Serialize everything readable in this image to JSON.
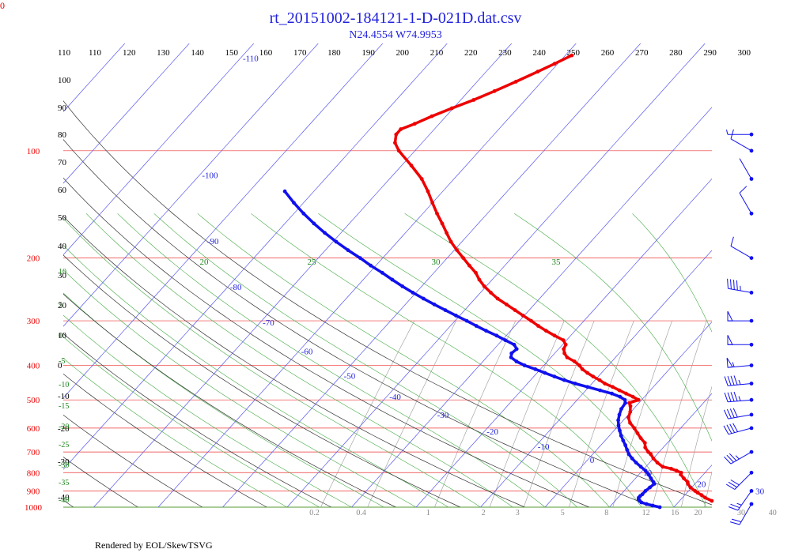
{
  "chart_data": {
    "type": "scatter",
    "title": "rt_20151002-184121-1-D-021D.dat.csv",
    "subtitle": "N24.4554 W74.9953",
    "footer": "Rendered by EOL/SkewTSVG",
    "corner_label": "0",
    "pressure_labels": [
      "100",
      "200",
      "300",
      "400",
      "500",
      "600",
      "700",
      "800",
      "900",
      "1000"
    ],
    "pressure_levels": [
      100,
      200,
      300,
      400,
      500,
      600,
      700,
      800,
      900,
      1000
    ],
    "theta_labels": [
      "110",
      "120",
      "130",
      "140",
      "150",
      "160",
      "170",
      "180",
      "190",
      "200",
      "210",
      "220",
      "230",
      "240",
      "250",
      "260",
      "270",
      "280",
      "290",
      "300"
    ],
    "theta_values": [
      110,
      120,
      130,
      140,
      150,
      160,
      170,
      180,
      190,
      200,
      210,
      220,
      230,
      240,
      250,
      260,
      270,
      280,
      290,
      300
    ],
    "left_theta_labels": [
      "110",
      "100",
      "90",
      "80",
      "70",
      "60",
      "50",
      "40",
      "30",
      "20",
      "10",
      "0",
      "-10",
      "-20",
      "-30",
      "-40"
    ],
    "isotherm_labels": [
      {
        "text": "-110",
        "t": -110
      },
      {
        "text": "-100",
        "t": -100
      },
      {
        "text": "-90",
        "t": -90
      },
      {
        "text": "-80",
        "t": -80
      },
      {
        "text": "-70",
        "t": -70
      },
      {
        "text": "-60",
        "t": -60
      },
      {
        "text": "-50",
        "t": -50
      },
      {
        "text": "-40",
        "t": -40
      },
      {
        "text": "-30",
        "t": -30
      },
      {
        "text": "-20",
        "t": -20
      },
      {
        "text": "-10",
        "t": -10
      },
      {
        "text": "0",
        "t": 0
      },
      {
        "text": "10",
        "t": 10
      },
      {
        "text": "20",
        "t": 20
      },
      {
        "text": "30",
        "t": 30
      }
    ],
    "moist_adiabat_top_labels": [
      "20",
      "25",
      "30",
      "35"
    ],
    "moist_adiabat_left_labels": [
      "10",
      "5",
      "0",
      "-5",
      "-10",
      "-15",
      "-20",
      "-25",
      "-30",
      "-35",
      "-40"
    ],
    "mixing_ratio_labels": [
      "0.2",
      "0.4",
      "1",
      "2",
      "3",
      "5",
      "8",
      "12",
      "16",
      "20",
      "30",
      "40"
    ],
    "temperature_series": {
      "name": "",
      "color": "#ee0000",
      "points": [
        [
          1000,
          28.2
        ],
        [
          980,
          26.5
        ],
        [
          960,
          25.0
        ],
        [
          940,
          23.5
        ],
        [
          925,
          22.6
        ],
        [
          910,
          21.6
        ],
        [
          900,
          21.0
        ],
        [
          880,
          19.8
        ],
        [
          860,
          18.9
        ],
        [
          850,
          18.6
        ],
        [
          830,
          17.5
        ],
        [
          810,
          16.5
        ],
        [
          800,
          16.3
        ],
        [
          790,
          15.3
        ],
        [
          780,
          14.2
        ],
        [
          770,
          12.6
        ],
        [
          750,
          11.2
        ],
        [
          730,
          10.0
        ],
        [
          710,
          9.0
        ],
        [
          700,
          8.3
        ],
        [
          680,
          7.2
        ],
        [
          660,
          6.5
        ],
        [
          640,
          5.2
        ],
        [
          620,
          4.0
        ],
        [
          600,
          2.8
        ],
        [
          580,
          1.4
        ],
        [
          560,
          0.4
        ],
        [
          540,
          -0.1
        ],
        [
          520,
          -0.9
        ],
        [
          510,
          -1.5
        ],
        [
          500,
          -0.5
        ],
        [
          490,
          -1.8
        ],
        [
          480,
          -3.3
        ],
        [
          470,
          -4.8
        ],
        [
          460,
          -6.3
        ],
        [
          450,
          -8.0
        ],
        [
          440,
          -9.3
        ],
        [
          430,
          -10.8
        ],
        [
          420,
          -12.2
        ],
        [
          410,
          -13.5
        ],
        [
          400,
          -14.5
        ],
        [
          390,
          -15.8
        ],
        [
          380,
          -17.5
        ],
        [
          370,
          -18.5
        ],
        [
          360,
          -19.2
        ],
        [
          350,
          -19.5
        ],
        [
          340,
          -20.5
        ],
        [
          330,
          -22.5
        ],
        [
          320,
          -24.5
        ],
        [
          310,
          -26.4
        ],
        [
          300,
          -28.2
        ],
        [
          290,
          -30.2
        ],
        [
          280,
          -32.2
        ],
        [
          270,
          -34.3
        ],
        [
          260,
          -36.5
        ],
        [
          250,
          -38.4
        ],
        [
          240,
          -40.3
        ],
        [
          230,
          -42.0
        ],
        [
          220,
          -43.5
        ],
        [
          210,
          -45.5
        ],
        [
          200,
          -47.5
        ],
        [
          190,
          -49.6
        ],
        [
          180,
          -51.7
        ],
        [
          170,
          -53.6
        ],
        [
          160,
          -55.6
        ],
        [
          150,
          -57.8
        ],
        [
          140,
          -60.0
        ],
        [
          130,
          -62.3
        ],
        [
          120,
          -65.0
        ],
        [
          110,
          -68.5
        ],
        [
          100,
          -72.5
        ],
        [
          95,
          -74.2
        ],
        [
          90,
          -75.2
        ],
        [
          87,
          -75.2
        ],
        [
          84,
          -73.8
        ],
        [
          80,
          -72.2
        ],
        [
          76,
          -70.2
        ],
        [
          72,
          -68.0
        ],
        [
          68,
          -66.0
        ],
        [
          64,
          -64.0
        ],
        [
          60,
          -62.0
        ],
        [
          57,
          -60.5
        ],
        [
          54,
          -59.0
        ]
      ]
    },
    "dewpoint_series": {
      "name": "",
      "color": "#1010ee",
      "points": [
        [
          1000,
          17.8
        ],
        [
          990,
          16.5
        ],
        [
          980,
          15.3
        ],
        [
          970,
          14.3
        ],
        [
          960,
          13.8
        ],
        [
          950,
          13.4
        ],
        [
          940,
          13.2
        ],
        [
          930,
          13.2
        ],
        [
          920,
          13.3
        ],
        [
          900,
          13.3
        ],
        [
          880,
          13.5
        ],
        [
          860,
          13.7
        ],
        [
          850,
          13.3
        ],
        [
          830,
          12.4
        ],
        [
          810,
          11.5
        ],
        [
          790,
          10.5
        ],
        [
          770,
          9.2
        ],
        [
          750,
          7.9
        ],
        [
          730,
          6.7
        ],
        [
          710,
          5.6
        ],
        [
          690,
          4.7
        ],
        [
          670,
          3.8
        ],
        [
          650,
          2.8
        ],
        [
          630,
          1.8
        ],
        [
          610,
          0.9
        ],
        [
          590,
          0.0
        ],
        [
          570,
          -0.8
        ],
        [
          550,
          -1.4
        ],
        [
          530,
          -1.9
        ],
        [
          510,
          -2.1
        ],
        [
          500,
          -2.6
        ],
        [
          490,
          -3.8
        ],
        [
          480,
          -5.5
        ],
        [
          470,
          -7.8
        ],
        [
          460,
          -10.2
        ],
        [
          450,
          -12.6
        ],
        [
          440,
          -14.8
        ],
        [
          430,
          -16.8
        ],
        [
          420,
          -18.8
        ],
        [
          410,
          -20.8
        ],
        [
          400,
          -23.0
        ],
        [
          390,
          -24.8
        ],
        [
          380,
          -26.2
        ],
        [
          370,
          -26.7
        ],
        [
          360,
          -26.5
        ],
        [
          350,
          -27.5
        ],
        [
          340,
          -29.5
        ],
        [
          330,
          -31.5
        ],
        [
          320,
          -33.8
        ],
        [
          310,
          -36.0
        ],
        [
          300,
          -38.2
        ],
        [
          290,
          -40.6
        ],
        [
          280,
          -43.0
        ],
        [
          270,
          -45.5
        ],
        [
          260,
          -48.0
        ],
        [
          250,
          -50.5
        ],
        [
          240,
          -53.0
        ],
        [
          230,
          -55.5
        ],
        [
          220,
          -58.0
        ],
        [
          210,
          -60.8
        ],
        [
          200,
          -63.5
        ],
        [
          190,
          -66.5
        ],
        [
          180,
          -69.5
        ],
        [
          170,
          -72.5
        ],
        [
          160,
          -75.5
        ],
        [
          150,
          -78.5
        ],
        [
          140,
          -81.5
        ],
        [
          130,
          -84.5
        ]
      ]
    },
    "wind_barbs": [
      {
        "p": 90,
        "speed": 5,
        "dir": 270
      },
      {
        "p": 100,
        "speed": 10,
        "dir": 300
      },
      {
        "p": 120,
        "speed": 0,
        "dir": 330
      },
      {
        "p": 150,
        "speed": 10,
        "dir": 330
      },
      {
        "p": 200,
        "speed": 10,
        "dir": 300
      },
      {
        "p": 250,
        "speed": 45,
        "dir": 280
      },
      {
        "p": 300,
        "speed": 50,
        "dir": 270
      },
      {
        "p": 350,
        "speed": 50,
        "dir": 270
      },
      {
        "p": 400,
        "speed": 55,
        "dir": 265
      },
      {
        "p": 450,
        "speed": 45,
        "dir": 265
      },
      {
        "p": 500,
        "speed": 45,
        "dir": 265
      },
      {
        "p": 550,
        "speed": 40,
        "dir": 260
      },
      {
        "p": 600,
        "speed": 40,
        "dir": 255
      },
      {
        "p": 700,
        "speed": 35,
        "dir": 240
      },
      {
        "p": 800,
        "speed": 30,
        "dir": 225
      },
      {
        "p": 900,
        "speed": 25,
        "dir": 215
      },
      {
        "p": 1000,
        "speed": 20,
        "dir": 210
      }
    ],
    "legend": "none",
    "grid": true
  }
}
